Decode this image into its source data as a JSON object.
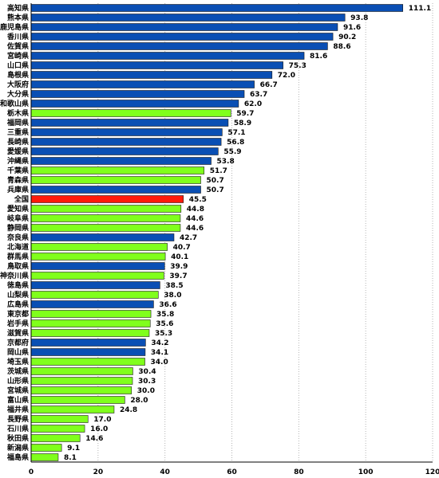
{
  "chart_data": {
    "type": "bar",
    "orientation": "horizontal",
    "categories": [
      "高知県",
      "熊本県",
      "鹿児島県",
      "香川県",
      "佐賀県",
      "宮崎県",
      "山口県",
      "島根県",
      "大阪府",
      "大分県",
      "和歌山県",
      "栃木県",
      "福岡県",
      "三重県",
      "長崎県",
      "愛媛県",
      "沖縄県",
      "千葉県",
      "青森県",
      "兵庫県",
      "全国",
      "愛知県",
      "岐阜県",
      "静岡県",
      "奈良県",
      "北海道",
      "群馬県",
      "鳥取県",
      "神奈川県",
      "徳島県",
      "山梨県",
      "広島県",
      "東京都",
      "岩手県",
      "滋賀県",
      "京都府",
      "岡山県",
      "埼玉県",
      "茨城県",
      "山形県",
      "宮城県",
      "富山県",
      "福井県",
      "長野県",
      "石川県",
      "秋田県",
      "新潟県",
      "福島県"
    ],
    "values": [
      111.1,
      93.8,
      91.6,
      90.2,
      88.6,
      81.6,
      75.3,
      72.0,
      66.7,
      63.7,
      62.0,
      59.7,
      58.9,
      57.1,
      56.8,
      55.9,
      53.8,
      51.7,
      50.7,
      50.7,
      45.5,
      44.8,
      44.6,
      44.6,
      42.7,
      40.7,
      40.1,
      39.9,
      39.7,
      38.5,
      38.0,
      36.6,
      35.8,
      35.6,
      35.3,
      34.2,
      34.1,
      34.0,
      30.4,
      30.3,
      30.0,
      28.0,
      24.8,
      17.0,
      16.0,
      14.6,
      9.1,
      8.1
    ],
    "value_labels": [
      "111.1",
      "93.8",
      "91.6",
      "90.2",
      "88.6",
      "81.6",
      "75.3",
      "72.0",
      "66.7",
      "63.7",
      "62.0",
      "59.7",
      "58.9",
      "57.1",
      "56.8",
      "55.9",
      "53.8",
      "51.7",
      "50.7",
      "50.7",
      "45.5",
      "44.8",
      "44.6",
      "44.6",
      "42.7",
      "40.7",
      "40.1",
      "39.9",
      "39.7",
      "38.5",
      "38.0",
      "36.6",
      "35.8",
      "35.6",
      "35.3",
      "34.2",
      "34.1",
      "34.0",
      "30.4",
      "30.3",
      "30.0",
      "28.0",
      "24.8",
      "17.0",
      "16.0",
      "14.6",
      "9.1",
      "8.1"
    ],
    "bar_colors": [
      "blue",
      "blue",
      "blue",
      "blue",
      "blue",
      "blue",
      "blue",
      "blue",
      "blue",
      "blue",
      "blue",
      "green",
      "blue",
      "blue",
      "blue",
      "blue",
      "blue",
      "green",
      "green",
      "blue",
      "red",
      "green",
      "green",
      "green",
      "blue",
      "green",
      "green",
      "blue",
      "green",
      "blue",
      "green",
      "blue",
      "green",
      "green",
      "green",
      "blue",
      "blue",
      "green",
      "green",
      "green",
      "green",
      "green",
      "green",
      "green",
      "green",
      "green",
      "green",
      "green"
    ],
    "color_map": {
      "blue": "#0a4fb4",
      "green": "#80ff1c",
      "red": "#ff1a0a"
    },
    "xlim": [
      0,
      120
    ],
    "xticks": [
      "0",
      "20",
      "40",
      "60",
      "80",
      "100",
      "120"
    ],
    "grid": true,
    "title": "",
    "xlabel": "",
    "ylabel": ""
  }
}
